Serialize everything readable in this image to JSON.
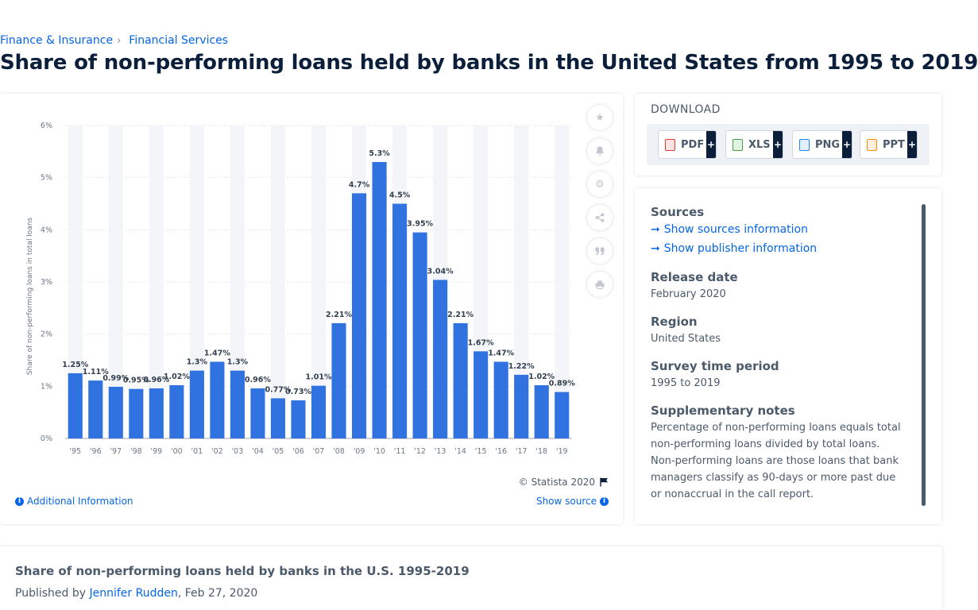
{
  "breadcrumb": {
    "items": [
      "Finance & Insurance",
      "Financial Services"
    ],
    "separator": "›"
  },
  "page_title": "Share of non-performing loans held by banks in the United States from 1995 to 2019",
  "chart_footer": {
    "copyright": "© Statista 2020",
    "additional_info": "Additional Information",
    "show_source": "Show source"
  },
  "download": {
    "title": "DOWNLOAD",
    "buttons": [
      {
        "label": "PDF",
        "icon": "pdf-file-icon",
        "color": "#e53935"
      },
      {
        "label": "XLS",
        "icon": "xls-file-icon",
        "color": "#43a047"
      },
      {
        "label": "PNG",
        "icon": "png-file-icon",
        "color": "#1e88e5"
      },
      {
        "label": "PPT",
        "icon": "ppt-file-icon",
        "color": "#fb8c00"
      }
    ],
    "plus": "+"
  },
  "details": {
    "sources_label": "Sources",
    "show_sources": "Show sources information",
    "show_publisher": "Show publisher information",
    "release_date_label": "Release date",
    "release_date": "February 2020",
    "region_label": "Region",
    "region": "United States",
    "survey_label": "Survey time period",
    "survey": "1995 to 2019",
    "notes_label": "Supplementary notes",
    "notes": "Percentage of non-performing loans equals total non-performing loans divided by total loans. Non-performing loans are those loans that bank managers classify as 90-days or more past due or nonaccrual in the call report."
  },
  "bottom": {
    "title": "Share of non-performing loans held by banks in the U.S. 1995-2019",
    "published_prefix": "Published by ",
    "author": "Jennifer Rudden",
    "date": ", Feb 27, 2020"
  },
  "colors": {
    "bar": "#2f72e0",
    "accent": "#0666e5",
    "text": "#0b1e3a"
  },
  "chart_data": {
    "type": "bar",
    "categories": [
      "'95",
      "'96",
      "'97",
      "'98",
      "'99",
      "'00",
      "'01",
      "'02",
      "'03",
      "'04",
      "'05",
      "'06",
      "'07",
      "'08",
      "'09",
      "'10",
      "'11",
      "'12",
      "'13",
      "'14",
      "'15",
      "'16",
      "'17",
      "'18",
      "'19"
    ],
    "values": [
      1.25,
      1.11,
      0.99,
      0.95,
      0.96,
      1.02,
      1.3,
      1.47,
      1.3,
      0.96,
      0.77,
      0.73,
      1.01,
      2.21,
      4.7,
      5.3,
      4.5,
      3.95,
      3.04,
      2.21,
      1.67,
      1.47,
      1.22,
      1.02,
      0.89
    ],
    "labels": [
      "1.25%",
      "1.11%",
      "0.99%",
      "0.95%",
      "0.96%",
      "1.02%",
      "1.3%",
      "1.47%",
      "1.3%",
      "0.96%",
      "0.77%",
      "0.73%",
      "1.01%",
      "2.21%",
      "4.7%",
      "5.3%",
      "4.5%",
      "3.95%",
      "3.04%",
      "2.21%",
      "1.67%",
      "1.47%",
      "1.22%",
      "1.02%",
      "0.89%"
    ],
    "ylabel": "Share of non-performing loans in total loans",
    "ylim": [
      0,
      6
    ],
    "yticks": [
      "0%",
      "1%",
      "2%",
      "3%",
      "4%",
      "5%",
      "6%"
    ],
    "grid": true
  }
}
